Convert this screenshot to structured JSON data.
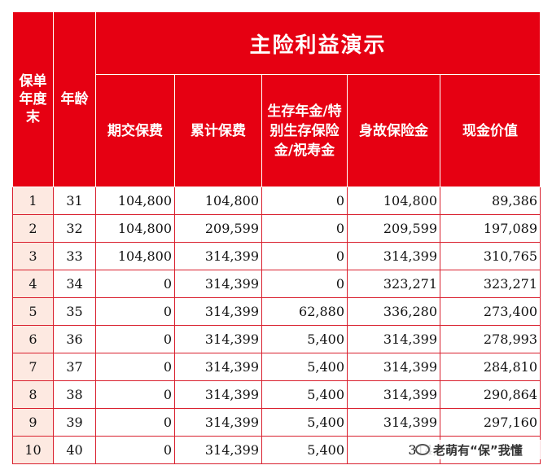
{
  "table": {
    "title": "主险利益演示",
    "headers": {
      "policy_year": "保单年度末",
      "age": "年龄",
      "premium": "期交保费",
      "cumulative_premium": "累计保费",
      "survival_benefit": "生存年金/特别生存保险金/祝寿金",
      "death_benefit": "身故保险金",
      "cash_value": "现金价值"
    },
    "rows": [
      {
        "year": "1",
        "age": "31",
        "premium": "104,800",
        "cumulative": "104,800",
        "survival": "0",
        "death": "104,800",
        "cash": "89,386"
      },
      {
        "year": "2",
        "age": "32",
        "premium": "104,800",
        "cumulative": "209,599",
        "survival": "0",
        "death": "209,599",
        "cash": "197,089"
      },
      {
        "year": "3",
        "age": "33",
        "premium": "104,800",
        "cumulative": "314,399",
        "survival": "0",
        "death": "314,399",
        "cash": "310,765"
      },
      {
        "year": "4",
        "age": "34",
        "premium": "0",
        "cumulative": "314,399",
        "survival": "0",
        "death": "323,271",
        "cash": "323,271"
      },
      {
        "year": "5",
        "age": "35",
        "premium": "0",
        "cumulative": "314,399",
        "survival": "62,880",
        "death": "336,280",
        "cash": "273,400"
      },
      {
        "year": "6",
        "age": "36",
        "premium": "0",
        "cumulative": "314,399",
        "survival": "5,400",
        "death": "314,399",
        "cash": "278,993"
      },
      {
        "year": "7",
        "age": "37",
        "premium": "0",
        "cumulative": "314,399",
        "survival": "5,400",
        "death": "314,399",
        "cash": "284,810"
      },
      {
        "year": "8",
        "age": "38",
        "premium": "0",
        "cumulative": "314,399",
        "survival": "5,400",
        "death": "314,399",
        "cash": "290,864"
      },
      {
        "year": "9",
        "age": "39",
        "premium": "0",
        "cumulative": "314,399",
        "survival": "5,400",
        "death": "314,399",
        "cash": "297,160"
      },
      {
        "year": "10",
        "age": "40",
        "premium": "0",
        "cumulative": "314,399",
        "survival": "5,400",
        "death": "314,",
        "cash": ""
      }
    ]
  },
  "watermark": {
    "icon": "wechat-icon",
    "text": "老萌有“保”我懂"
  },
  "colors": {
    "header_bg": "#e60012",
    "index_cell_bg": "#fde9e1",
    "border": "#d9202e"
  }
}
